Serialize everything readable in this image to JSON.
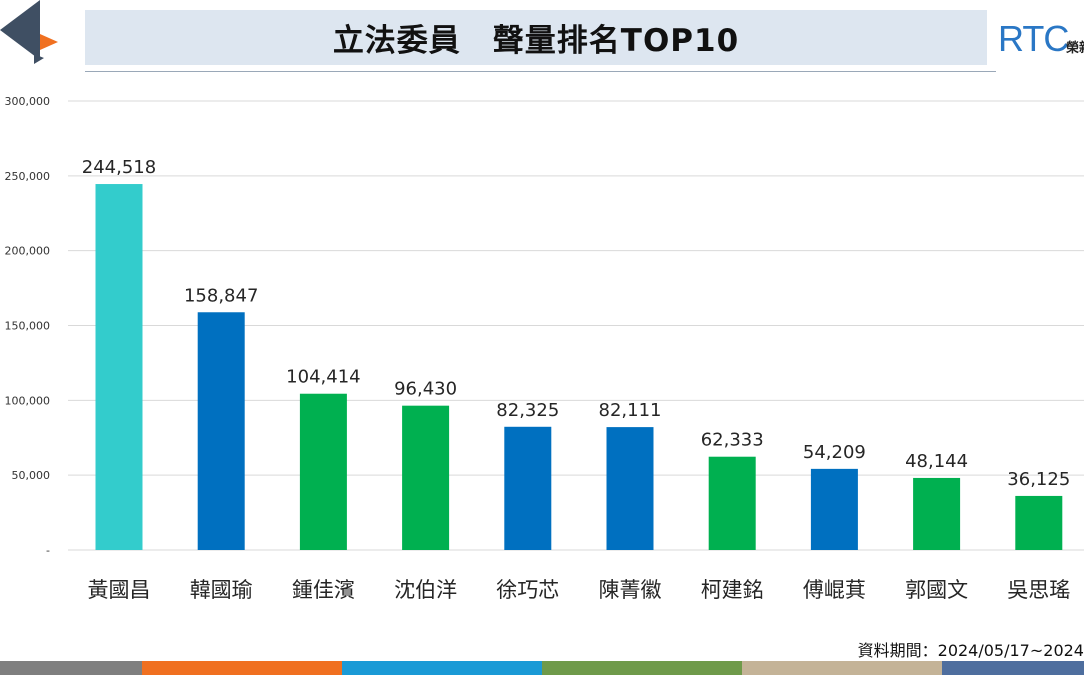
{
  "header": {
    "title": "立法委員　聲量排名TOP10",
    "logo_text": "RTC",
    "logo_sub": "榮新"
  },
  "note": "資料期間：2024/05/17~2024",
  "colors": {
    "cyan": "#33cccc",
    "blue": "#0070c0",
    "green": "#00b050",
    "gridline": "#d9d9d9",
    "footer": [
      "#7f7f7f",
      "#f07020",
      "#1a9ad6",
      "#6f9a4a",
      "#c4b397",
      "#4e6e9e"
    ]
  },
  "chart_data": {
    "type": "bar",
    "title": "立法委員　聲量排名TOP10",
    "xlabel": "",
    "ylabel": "",
    "ylim": [
      0,
      300000
    ],
    "grid": true,
    "y_ticks": [
      {
        "value": 0,
        "label": "-"
      },
      {
        "value": 50000,
        "label": "50,000"
      },
      {
        "value": 100000,
        "label": "100,000"
      },
      {
        "value": 150000,
        "label": "150,000"
      },
      {
        "value": 200000,
        "label": "200,000"
      },
      {
        "value": 250000,
        "label": "250,000"
      },
      {
        "value": 300000,
        "label": "300,000"
      }
    ],
    "categories": [
      "黃國昌",
      "韓國瑜",
      "鍾佳濱",
      "沈伯洋",
      "徐巧芯",
      "陳菁徽",
      "柯建銘",
      "傅崐萁",
      "郭國文",
      "吳思瑤"
    ],
    "values": [
      244518,
      158847,
      104414,
      96430,
      82325,
      82111,
      62333,
      54209,
      48144,
      36125
    ],
    "value_labels": [
      "244,518",
      "158,847",
      "104,414",
      "96,430",
      "82,325",
      "82,111",
      "62,333",
      "54,209",
      "48,144",
      "36,125"
    ],
    "bar_colors": [
      "#33cccc",
      "#0070c0",
      "#00b050",
      "#00b050",
      "#0070c0",
      "#0070c0",
      "#00b050",
      "#0070c0",
      "#00b050",
      "#00b050"
    ]
  }
}
